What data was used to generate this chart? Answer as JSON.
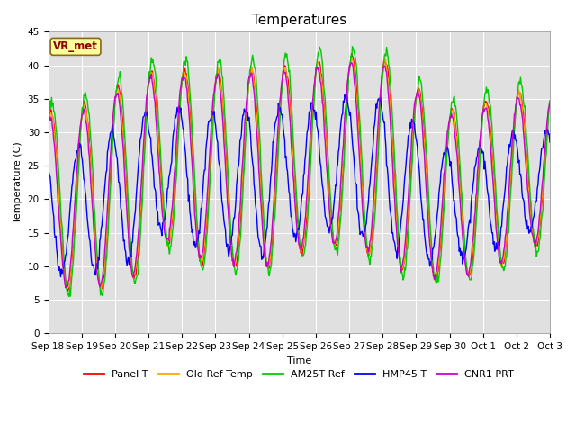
{
  "title": "Temperatures",
  "xlabel": "Time",
  "ylabel": "Temperature (C)",
  "ylim": [
    0,
    45
  ],
  "yticks": [
    0,
    5,
    10,
    15,
    20,
    25,
    30,
    35,
    40,
    45
  ],
  "annotation_text": "VR_met",
  "annotation_color": "#8B0000",
  "annotation_bg": "#FFFF99",
  "annotation_edge": "#8B6914",
  "bg_color": "#E0E0E0",
  "legend": [
    "Panel T",
    "Old Ref Temp",
    "AM25T Ref",
    "HMP45 T",
    "CNR1 PRT"
  ],
  "colors": [
    "#FF0000",
    "#FFA500",
    "#00CC00",
    "#0000FF",
    "#CC00CC"
  ],
  "linewidth": 1.0,
  "xtick_labels": [
    "Sep 18",
    "Sep 19",
    "Sep 20",
    "Sep 21",
    "Sep 22",
    "Sep 23",
    "Sep 24",
    "Sep 25",
    "Sep 26",
    "Sep 27",
    "Sep 28",
    "Sep 29",
    "Sep 30",
    "Oct 1",
    "Oct 2",
    "Oct 3"
  ],
  "title_fontsize": 11,
  "label_fontsize": 8,
  "tick_fontsize": 7.5,
  "legend_fontsize": 8,
  "figwidth": 6.4,
  "figheight": 4.8,
  "dpi": 100
}
